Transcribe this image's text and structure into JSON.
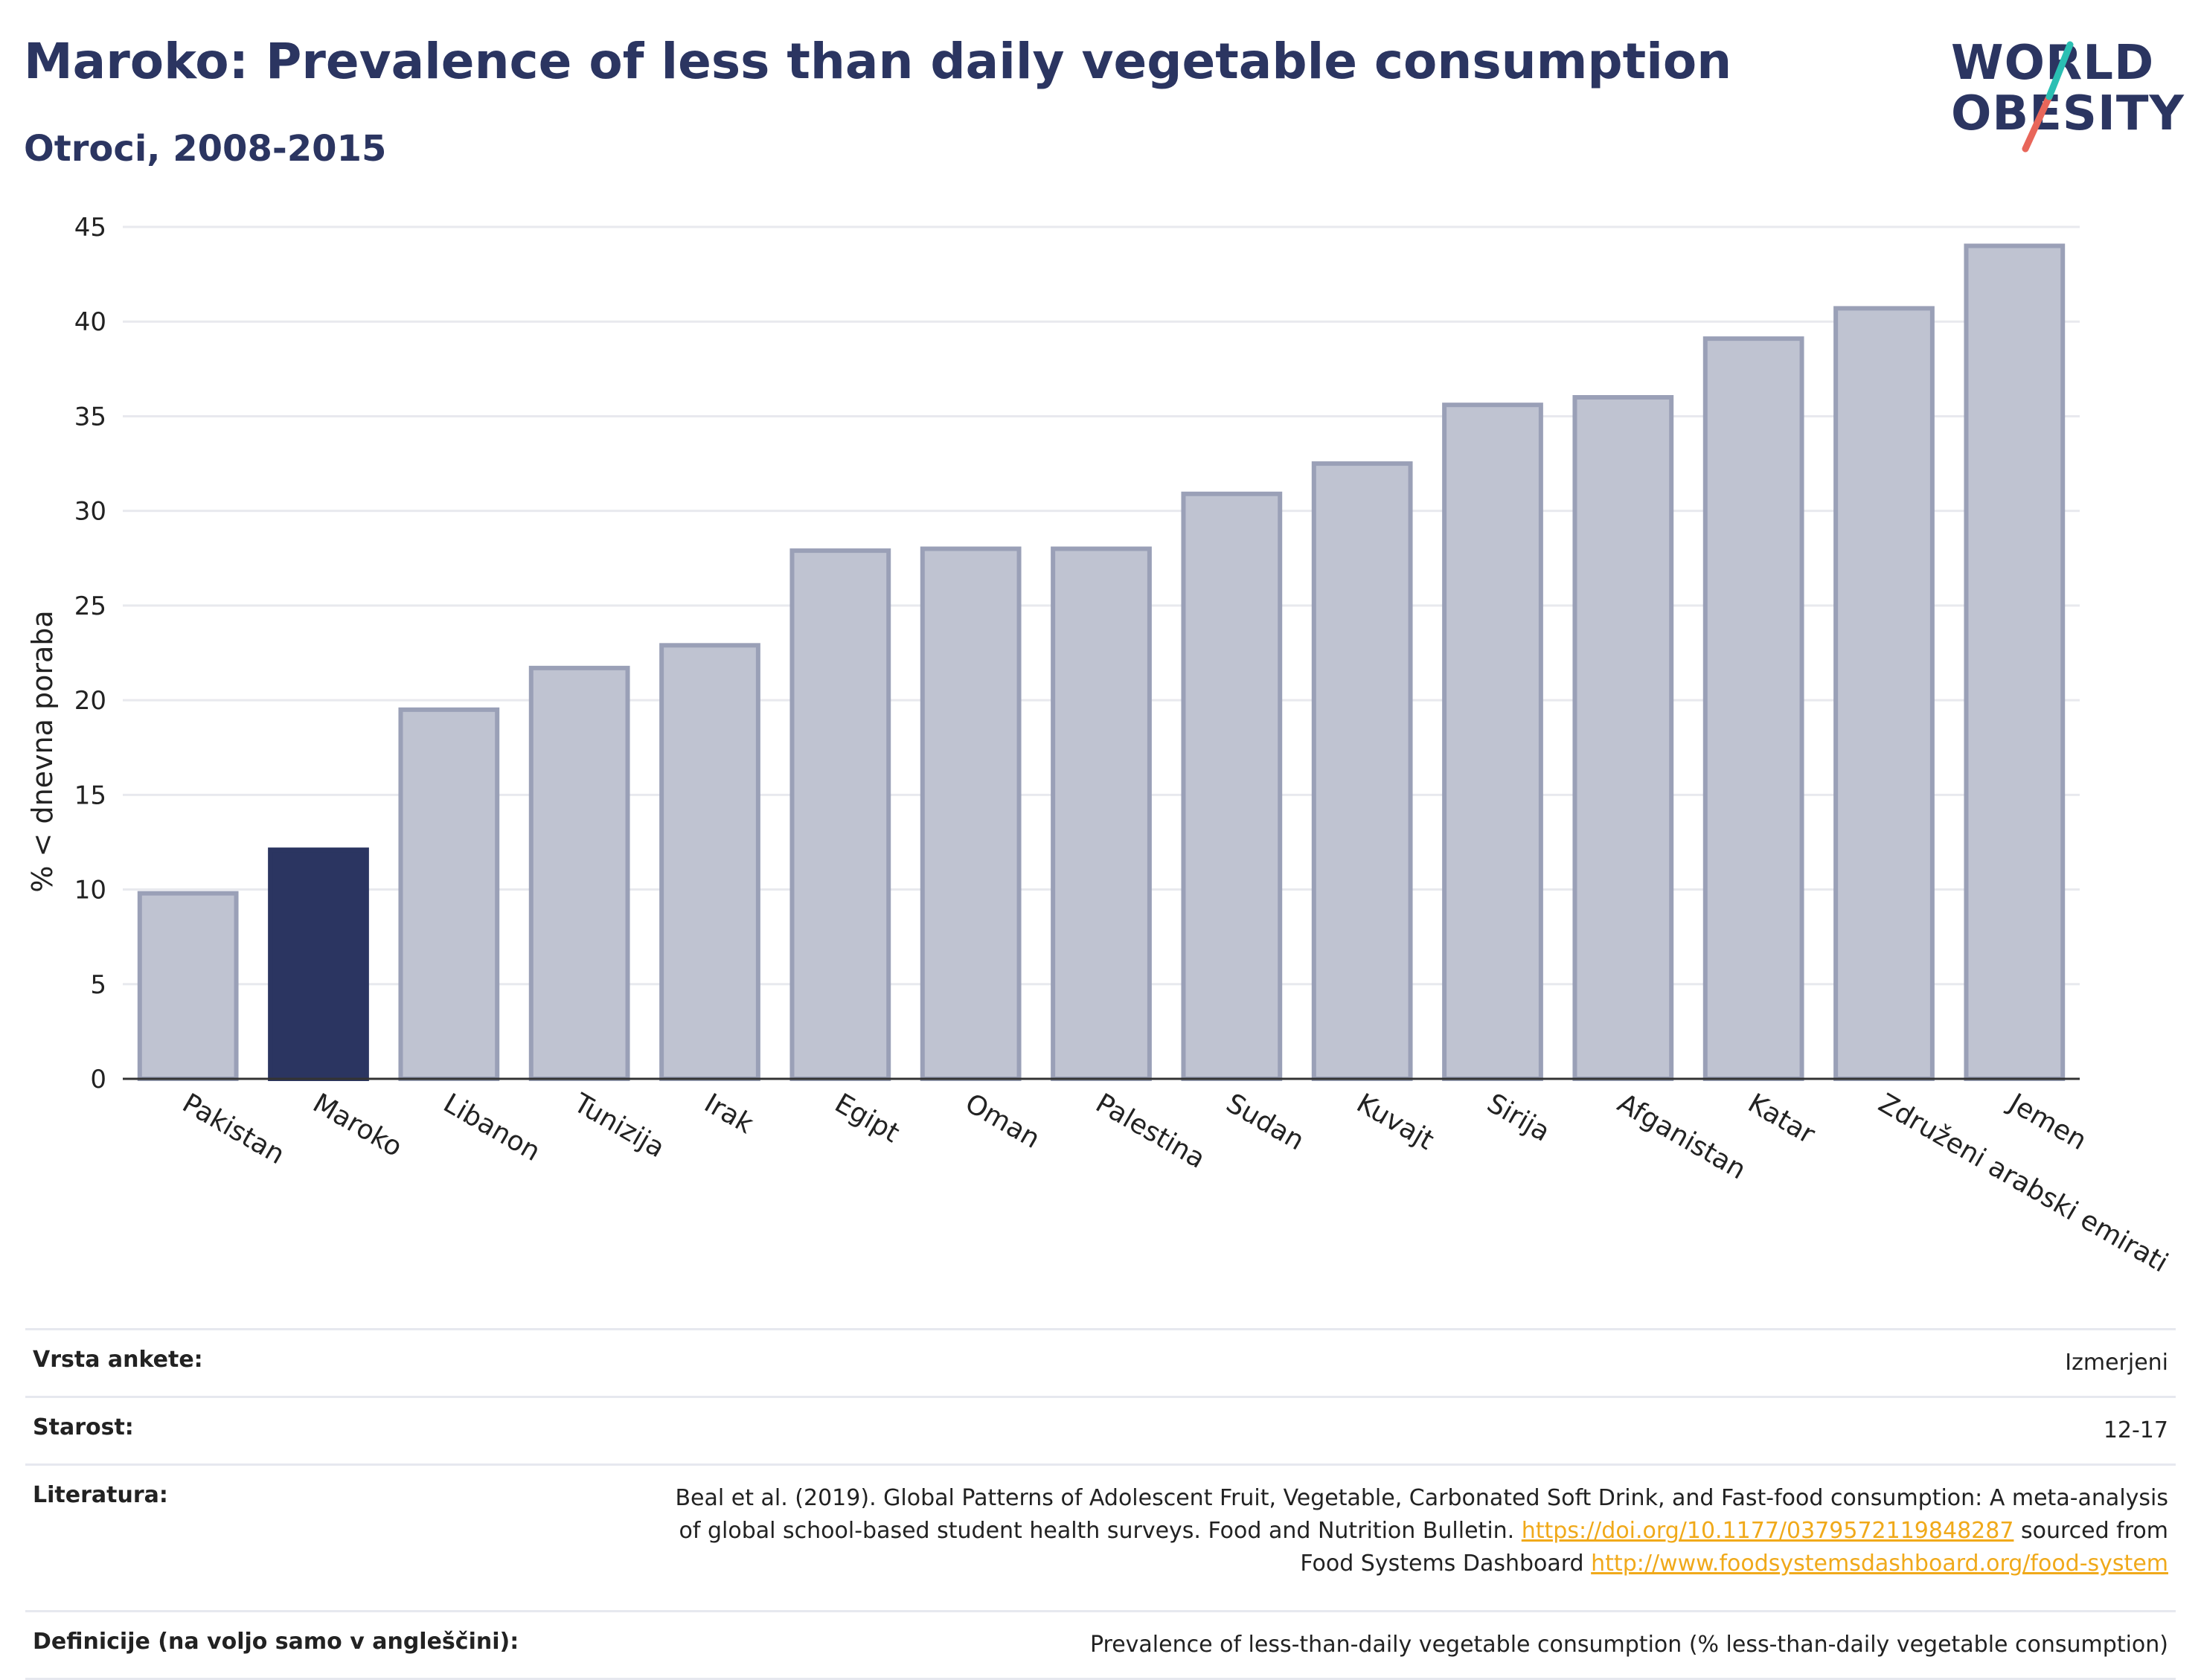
{
  "header": {
    "title": "Maroko: Prevalence of less than daily vegetable consumption",
    "subtitle": "Otroci, 2008-2015"
  },
  "logo": {
    "line1": "WORLD",
    "line2": "OBESITY",
    "accent_colors": [
      "#2bbfb3",
      "#e8665a"
    ]
  },
  "chart_data": {
    "type": "bar",
    "title": "Maroko: Prevalence of less than daily vegetable consumption",
    "subtitle": "Otroci, 2008-2015",
    "ylabel": "% < dnevna poraba",
    "xlabel": "",
    "ylim": [
      0,
      45
    ],
    "yticks": [
      0,
      5,
      10,
      15,
      20,
      25,
      30,
      35,
      40,
      45
    ],
    "grid": true,
    "categories": [
      "Pakistan",
      "Maroko",
      "Libanon",
      "Tunizija",
      "Irak",
      "Egipt",
      "Oman",
      "Palestina",
      "Sudan",
      "Kuvajt",
      "Sirija",
      "Afganistan",
      "Katar",
      "Združeni arabski emirati",
      "Jemen"
    ],
    "values": [
      9.8,
      12.1,
      19.5,
      21.7,
      22.9,
      27.9,
      28.0,
      28.0,
      30.9,
      32.5,
      35.6,
      36.0,
      39.1,
      40.7,
      44.0
    ],
    "highlight": "Maroko",
    "colors": {
      "bar": "#bfc3d1",
      "bar_edge": "#9aa0b7",
      "highlight": "#2b3561"
    }
  },
  "meta": {
    "survey_type_label": "Vrsta ankete:",
    "survey_type_value": "Izmerjeni",
    "age_label": "Starost:",
    "age_value": "12-17",
    "reference_label": "Literatura:",
    "reference_text_1": "Beal et al. (2019). Global Patterns of Adolescent Fruit, Vegetable, Carbonated Soft Drink, and Fast-food consumption: A meta-analysis",
    "reference_text_2": "of global school-based student health surveys. Food and Nutrition Bulletin.",
    "reference_link_1": "https://doi.org/10.1177/0379572119848287",
    "reference_text_3": "sourced from",
    "reference_text_4": "Food Systems Dashboard",
    "reference_link_2": "http://www.foodsystemsdashboard.org/food-system",
    "definitions_label": "Definicije (na voljo samo v angleščini):",
    "definitions_value": "Prevalence of less-than-daily vegetable consumption (% less-than-daily vegetable consumption)"
  }
}
